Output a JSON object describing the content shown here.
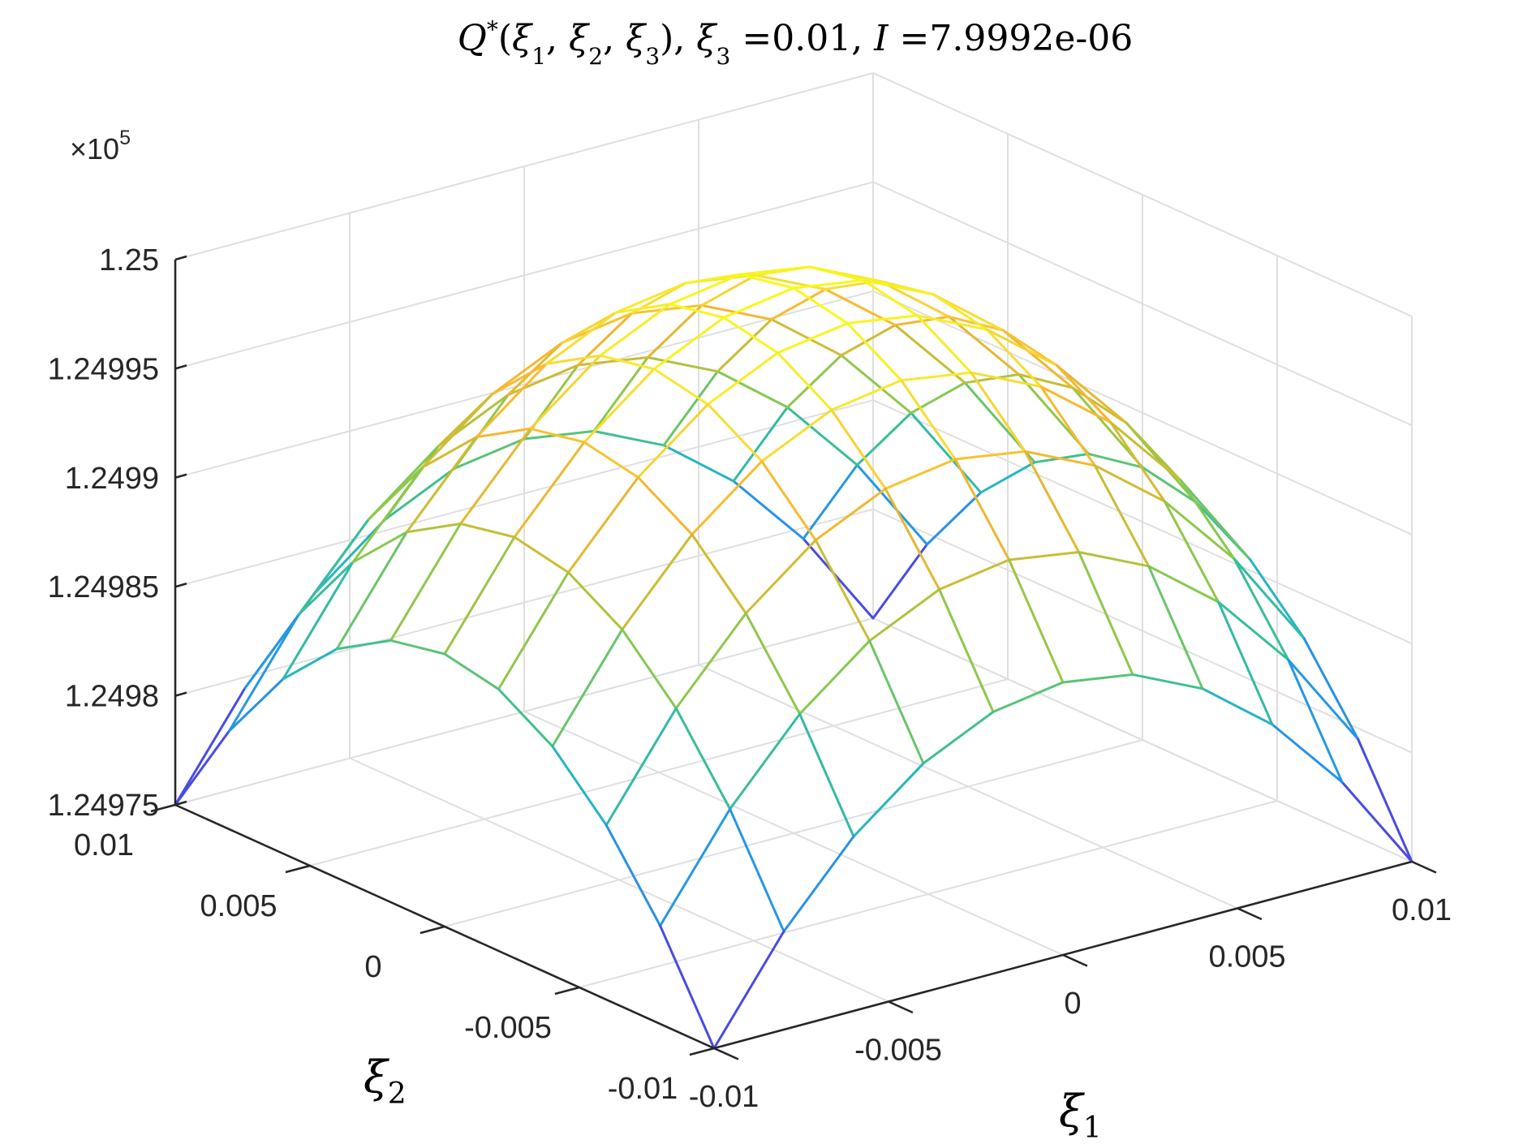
{
  "title": {
    "q_symbol": "Q",
    "q_sup": "*",
    "args_open": "(",
    "arg1": "ξ",
    "arg1_sub": "1",
    "arg2": "ξ",
    "arg2_sub": "2",
    "arg3": "ξ",
    "arg3_sub": "3",
    "args_close": "),",
    "xi3_symbol": "ξ",
    "xi3_sub": "3",
    "xi3_eq": " =0.01, ",
    "i_symbol": "I",
    "i_eq": " =7.9992e-06"
  },
  "chart_data": {
    "type": "surface",
    "view": "3d-mesh",
    "grid": true,
    "colormap": [
      "#3e26a8",
      "#4a55f0",
      "#2e86eb",
      "#1bb0d6",
      "#3cbf92",
      "#88c94e",
      "#c8bd35",
      "#f9b52e",
      "#f5e534",
      "#f9fb15"
    ],
    "x_axis": {
      "label": "ξ",
      "label_sub": "1",
      "range": [
        -0.01,
        0.01
      ],
      "ticks": [
        -0.01,
        -0.005,
        0,
        0.005,
        0.01
      ],
      "tick_labels": [
        "-0.01",
        "-0.005",
        "0",
        "0.005",
        "0.01"
      ]
    },
    "y_axis": {
      "label": "ξ",
      "label_sub": "2",
      "range": [
        -0.01,
        0.01
      ],
      "ticks": [
        -0.01,
        -0.005,
        0,
        0.005,
        0.01
      ],
      "tick_labels": [
        "-0.01",
        "-0.005",
        "0",
        "0.005",
        "0.01"
      ]
    },
    "z_axis": {
      "label": "",
      "range": [
        124975,
        125000
      ],
      "ticks": [
        124975,
        124980,
        124985,
        124990,
        124995,
        125000
      ],
      "tick_labels": [
        "1.24975",
        "1.2498",
        "1.24985",
        "1.2499",
        "1.24995",
        "1.25"
      ],
      "exponent_prefix": "×10",
      "exponent_power": "5"
    },
    "surface": {
      "x": [
        -0.01,
        -0.008,
        -0.006,
        -0.004,
        -0.002,
        0,
        0.002,
        0.004,
        0.006,
        0.008,
        0.01
      ],
      "y": [
        -0.01,
        -0.008,
        -0.006,
        -0.004,
        -0.002,
        0,
        0.002,
        0.004,
        0.006,
        0.008,
        0.01
      ],
      "z_formula": "125000 - 125000*(x^2 + y^2)",
      "z_min": 124975,
      "z_max": 125000
    }
  }
}
